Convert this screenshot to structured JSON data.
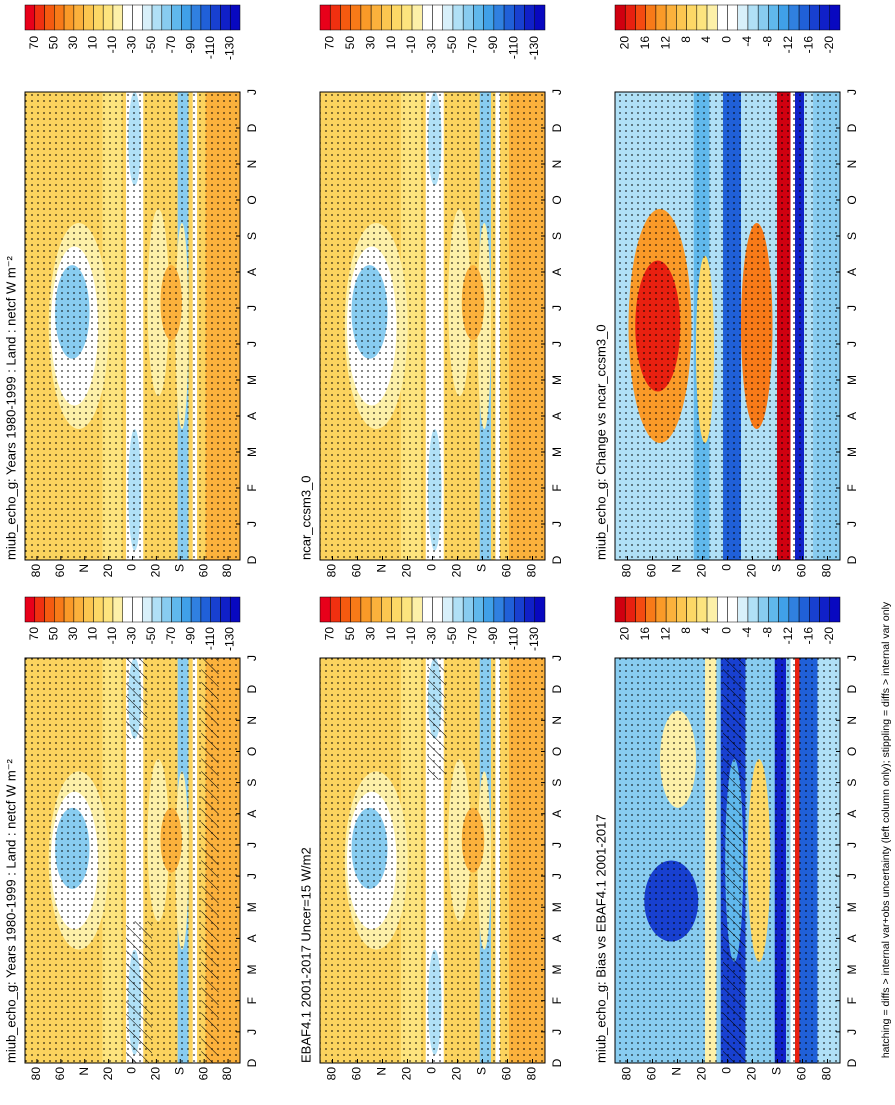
{
  "panels": [
    {
      "title": "miub_echo_g: Years 1980-1999 : Land : netcf W m⁻²",
      "colorbar_labels": [
        70,
        50,
        30,
        10,
        -10,
        -30,
        -50,
        -70,
        -90,
        -110,
        -130
      ],
      "palette": [
        "#e8001a",
        "#f03010",
        "#f55a10",
        "#f87a18",
        "#fa9a28",
        "#fbb13c",
        "#fcc650",
        "#fdd866",
        "#fde47e",
        "#fdf0a8",
        "#ffffff",
        "#ffffff",
        "#d8f0fa",
        "#b0e0f6",
        "#88ccf0",
        "#60b8ec",
        "#40a0e8",
        "#3080e0",
        "#2060d8",
        "#1840d0",
        "#1020c8",
        "#0808c0"
      ]
    },
    {
      "title": "ncar_ccsm3_0",
      "colorbar_labels": [
        70,
        50,
        30,
        10,
        -10,
        -30,
        -50,
        -70,
        -90,
        -110,
        -130
      ],
      "palette": [
        "#e8001a",
        "#f03010",
        "#f55a10",
        "#f87a18",
        "#fa9a28",
        "#fbb13c",
        "#fcc650",
        "#fdd866",
        "#fde47e",
        "#fdf0a8",
        "#ffffff",
        "#ffffff",
        "#d8f0fa",
        "#b0e0f6",
        "#88ccf0",
        "#60b8ec",
        "#40a0e8",
        "#3080e0",
        "#2060d8",
        "#1840d0",
        "#1020c8",
        "#0808c0"
      ]
    },
    {
      "title": "miub_echo_g: Change vs ncar_ccsm3_0",
      "colorbar_labels": [
        20,
        16,
        12,
        8,
        4,
        0,
        -4,
        -8,
        -12,
        -16,
        -20
      ],
      "palette": [
        "#d00010",
        "#e82010",
        "#f54a10",
        "#f87a18",
        "#fa9a28",
        "#fbb13c",
        "#fcc650",
        "#fdd866",
        "#fde47e",
        "#fdf0a8",
        "#ffffff",
        "#ffffff",
        "#d8f0fa",
        "#b0e0f6",
        "#88ccf0",
        "#60b8ec",
        "#40a0e8",
        "#3080e0",
        "#2060d8",
        "#1840d0",
        "#1020c8",
        "#0808c0"
      ]
    },
    {
      "title": "miub_echo_g: Years 1980-1999 : Land : netcf W m⁻²",
      "colorbar_labels": [
        70,
        50,
        30,
        10,
        -10,
        -30,
        -50,
        -70,
        -90,
        -110,
        -130
      ],
      "palette": [
        "#e8001a",
        "#f03010",
        "#f55a10",
        "#f87a18",
        "#fa9a28",
        "#fbb13c",
        "#fcc650",
        "#fdd866",
        "#fde47e",
        "#fdf0a8",
        "#ffffff",
        "#ffffff",
        "#d8f0fa",
        "#b0e0f6",
        "#88ccf0",
        "#60b8ec",
        "#40a0e8",
        "#3080e0",
        "#2060d8",
        "#1840d0",
        "#1020c8",
        "#0808c0"
      ]
    },
    {
      "title": "EBAF4.1 2001-2017 Uncer=15 W/m2",
      "colorbar_labels": [
        70,
        50,
        30,
        10,
        -10,
        -30,
        -50,
        -70,
        -90,
        -110,
        -130
      ],
      "palette": [
        "#e8001a",
        "#f03010",
        "#f55a10",
        "#f87a18",
        "#fa9a28",
        "#fbb13c",
        "#fcc650",
        "#fdd866",
        "#fde47e",
        "#fdf0a8",
        "#ffffff",
        "#ffffff",
        "#d8f0fa",
        "#b0e0f6",
        "#88ccf0",
        "#60b8ec",
        "#40a0e8",
        "#3080e0",
        "#2060d8",
        "#1840d0",
        "#1020c8",
        "#0808c0"
      ]
    },
    {
      "title": "miub_echo_g: Bias vs EBAF4.1 2001-2017",
      "colorbar_labels": [
        20,
        16,
        12,
        8,
        4,
        0,
        -4,
        -8,
        -12,
        -16,
        -20
      ],
      "palette": [
        "#d00010",
        "#e82010",
        "#f54a10",
        "#f87a18",
        "#fa9a28",
        "#fbb13c",
        "#fcc650",
        "#fdd866",
        "#fde47e",
        "#fdf0a8",
        "#ffffff",
        "#ffffff",
        "#d8f0fa",
        "#b0e0f6",
        "#88ccf0",
        "#60b8ec",
        "#40a0e8",
        "#3080e0",
        "#2060d8",
        "#1840d0",
        "#1020c8",
        "#0808c0"
      ]
    }
  ],
  "lat_labels": [
    "80",
    "60",
    "N",
    "20",
    "0",
    "20",
    "S",
    "60",
    "80"
  ],
  "month_labels": [
    "D",
    "J",
    "F",
    "M",
    "A",
    "M",
    "J",
    "J",
    "A",
    "S",
    "O",
    "N",
    "D",
    "J"
  ],
  "footer": "hatching = diffs > internal var+obs uncertainty (left column only); stippling = diffs > internal var only"
}
